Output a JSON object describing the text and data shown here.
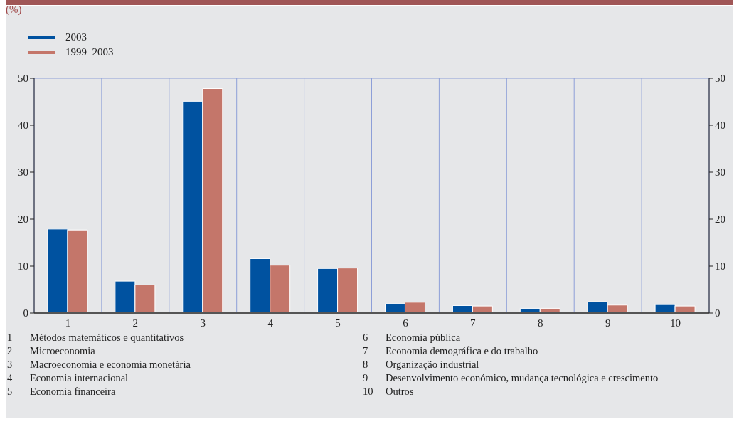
{
  "chart_data": {
    "type": "bar",
    "categories": [
      "1",
      "2",
      "3",
      "4",
      "5",
      "6",
      "7",
      "8",
      "9",
      "10"
    ],
    "series": [
      {
        "name": "2003",
        "color": "#0052a0",
        "values": [
          17.9,
          6.8,
          45.1,
          11.6,
          9.5,
          2.0,
          1.6,
          1.0,
          2.4,
          1.8
        ]
      },
      {
        "name": "1999–2003",
        "color": "#c4766a",
        "values": [
          17.7,
          6.0,
          47.8,
          10.2,
          9.6,
          2.3,
          1.5,
          1.0,
          1.7,
          1.5
        ]
      }
    ],
    "ylim": [
      0,
      50
    ],
    "yticks": [
      0,
      10,
      20,
      30,
      40,
      50
    ],
    "y2lim": [
      0,
      50
    ],
    "y2ticks": [
      0,
      10,
      20,
      30,
      40,
      50
    ],
    "grid": true,
    "legend": "top left",
    "annotations": [
      "(%)",
      "1 Métodos matemáticos e quantitativos",
      "2 Microeconomia",
      "3 Macroeconomia e economia monetária",
      "4 Economia internacional",
      "5 Economia financeira",
      "6 Economia pública",
      "7 Economia demográfica e do trabalho",
      "8 Organização industrial",
      "9 Desenvolvimento económico, mudança tecnológica e crescimento",
      "10 Outros"
    ]
  }
}
